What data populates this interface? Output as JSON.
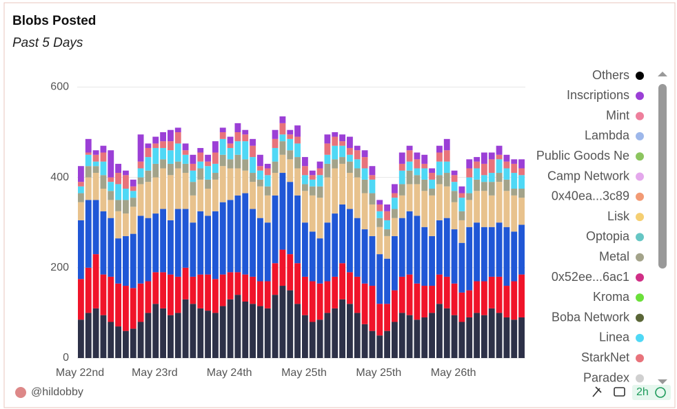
{
  "header": {
    "title": "Blobs Posted",
    "subtitle": "Past 5 Days"
  },
  "chart_data": {
    "type": "bar",
    "stacked": true,
    "categories": [
      "May 22nd",
      null,
      null,
      null,
      null,
      null,
      null,
      null,
      null,
      null,
      "May 23rd",
      null,
      null,
      null,
      null,
      null,
      null,
      null,
      null,
      null,
      "May 24th",
      null,
      null,
      null,
      null,
      null,
      null,
      null,
      null,
      null,
      "May 25th",
      null,
      null,
      null,
      null,
      null,
      null,
      null,
      null,
      null,
      "May 25th",
      null,
      null,
      null,
      null,
      null,
      null,
      null,
      null,
      null,
      "May 26th",
      null,
      null,
      null,
      null,
      null,
      null,
      null,
      null,
      null
    ],
    "ylim": [
      0,
      625
    ],
    "yticks": [
      0,
      200,
      400,
      600
    ],
    "grid": true,
    "series": [
      {
        "color": "#2d3148",
        "values": [
          85,
          100,
          110,
          95,
          80,
          70,
          60,
          65,
          80,
          100,
          120,
          110,
          95,
          100,
          130,
          120,
          110,
          105,
          100,
          115,
          130,
          140,
          125,
          120,
          115,
          110,
          140,
          160,
          150,
          120,
          95,
          80,
          85,
          100,
          110,
          130,
          120,
          100,
          75,
          60,
          50,
          60,
          80,
          100,
          95,
          85,
          90,
          100,
          120,
          110,
          95,
          80,
          90,
          100,
          95,
          110,
          100,
          90,
          85,
          90
        ]
      },
      {
        "color": "#f0142a",
        "values": [
          90,
          100,
          120,
          90,
          100,
          95,
          100,
          90,
          85,
          70,
          70,
          80,
          90,
          80,
          70,
          60,
          75,
          80,
          75,
          70,
          60,
          50,
          60,
          60,
          55,
          60,
          70,
          80,
          80,
          90,
          85,
          90,
          80,
          70,
          70,
          80,
          70,
          80,
          90,
          100,
          70,
          60,
          70,
          80,
          90,
          80,
          70,
          60,
          65,
          70,
          70,
          65,
          60,
          70,
          75,
          70,
          80,
          70,
          85,
          95
        ]
      },
      {
        "color": "#2057d6",
        "values": [
          130,
          150,
          120,
          140,
          130,
          100,
          110,
          120,
          150,
          140,
          130,
          140,
          120,
          150,
          130,
          120,
          140,
          130,
          150,
          160,
          160,
          170,
          180,
          150,
          140,
          130,
          150,
          170,
          160,
          150,
          120,
          110,
          100,
          130,
          140,
          130,
          140,
          130,
          120,
          110,
          110,
          100,
          120,
          130,
          140,
          150,
          130,
          110,
          120,
          130,
          120,
          110,
          140,
          130,
          120,
          110,
          120,
          130,
          110,
          110
        ]
      },
      {
        "color": "#e8c28d",
        "values": [
          40,
          50,
          60,
          50,
          40,
          60,
          50,
          60,
          70,
          80,
          80,
          90,
          100,
          90,
          80,
          60,
          70,
          60,
          70,
          80,
          70,
          60,
          50,
          60,
          70,
          60,
          50,
          40,
          50,
          60,
          70,
          80,
          90,
          100,
          100,
          90,
          80,
          90,
          80,
          70,
          60,
          50,
          40,
          50,
          60,
          70,
          80,
          90,
          80,
          70,
          60,
          50,
          60,
          70,
          80,
          70,
          90,
          80,
          80,
          60
        ]
      },
      {
        "color": "#a3a38a",
        "values": [
          20,
          25,
          15,
          30,
          20,
          25,
          30,
          20,
          15,
          25,
          30,
          20,
          25,
          15,
          20,
          30,
          25,
          20,
          15,
          25,
          20,
          30,
          25,
          20,
          15,
          20,
          25,
          30,
          20,
          25,
          15,
          20,
          25,
          30,
          20,
          15,
          25,
          20,
          30,
          25,
          20,
          15,
          20,
          25,
          30,
          20,
          25,
          15,
          20,
          30,
          25,
          20,
          15,
          25,
          20,
          30,
          20,
          25,
          15,
          20
        ]
      },
      {
        "color": "#4fd8f5",
        "values": [
          15,
          25,
          10,
          30,
          20,
          35,
          25,
          15,
          20,
          30,
          35,
          25,
          30,
          40,
          20,
          25,
          15,
          30,
          20,
          35,
          25,
          30,
          40,
          35,
          20,
          25,
          30,
          15,
          25,
          30,
          20,
          15,
          25,
          20,
          30,
          25,
          15,
          20,
          25,
          30,
          15,
          20,
          25,
          30,
          20,
          15,
          25,
          20,
          30,
          25,
          20,
          30,
          35,
          25,
          15,
          20,
          30,
          25,
          35,
          30
        ]
      },
      {
        "color": "#e8737b",
        "values": [
          10,
          5,
          15,
          20,
          10,
          25,
          30,
          10,
          15,
          20,
          10,
          15,
          20,
          25,
          10,
          15,
          20,
          10,
          25,
          15,
          10,
          20,
          15,
          25,
          10,
          15,
          20,
          25,
          10,
          15,
          20,
          10,
          15,
          25,
          20,
          10,
          15,
          20,
          25,
          10,
          15,
          20,
          10,
          15,
          25,
          20,
          10,
          15,
          20,
          25,
          15,
          10,
          20,
          15,
          25,
          30,
          10,
          15,
          20,
          15
        ]
      },
      {
        "color": "#9b3fd6",
        "values": [
          35,
          30,
          10,
          15,
          60,
          20,
          10,
          15,
          60,
          10,
          15,
          20,
          25,
          10,
          15,
          20,
          10,
          15,
          25,
          10,
          15,
          20,
          10,
          15,
          25,
          10,
          20,
          15,
          10,
          25,
          20,
          10,
          15,
          20,
          10,
          15,
          25,
          10,
          15,
          20,
          10,
          15,
          20,
          25,
          10,
          15,
          20,
          10,
          15,
          25,
          10,
          15,
          20,
          10,
          25,
          15,
          20,
          15,
          10,
          20
        ]
      }
    ],
    "legend": [
      {
        "name": "Others",
        "color": "#000000"
      },
      {
        "name": "Inscriptions",
        "color": "#9b3fd6"
      },
      {
        "name": "Mint",
        "color": "#ee7f9c"
      },
      {
        "name": "Lambda",
        "color": "#9db7ea"
      },
      {
        "name": "Public Goods Ne",
        "color": "#8cc55f"
      },
      {
        "name": "Camp Network",
        "color": "#e4a8ec"
      },
      {
        "name": "0x40ea...3c89",
        "color": "#f29a74"
      },
      {
        "name": "Lisk",
        "color": "#f5cf72"
      },
      {
        "name": "Optopia",
        "color": "#66c6c4"
      },
      {
        "name": "Metal",
        "color": "#a3a38a"
      },
      {
        "name": "0x52ee...6ac1",
        "color": "#d02f86"
      },
      {
        "name": "Kroma",
        "color": "#6be03a"
      },
      {
        "name": "Boba Network",
        "color": "#5a6637"
      },
      {
        "name": "Linea",
        "color": "#4fd8f5"
      },
      {
        "name": "StarkNet",
        "color": "#e8737b"
      },
      {
        "name": "Paradex",
        "color": "#d0d0d0"
      }
    ]
  },
  "footer": {
    "author": "@hildobby",
    "age": "2h"
  }
}
